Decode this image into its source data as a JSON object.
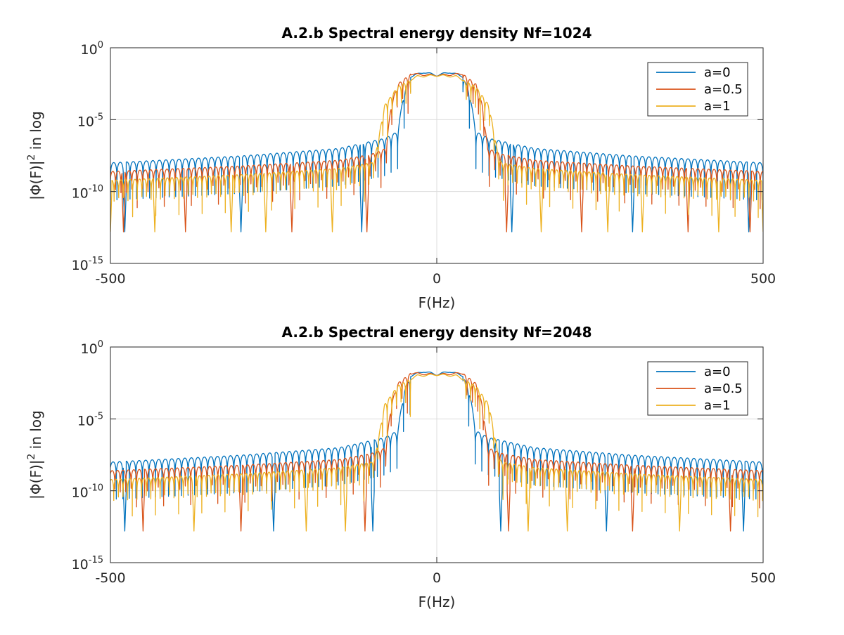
{
  "figure": {
    "background": "#ffffff",
    "axis_color": "#262626",
    "grid_color": "#dcdcdc"
  },
  "chart_data": [
    {
      "type": "line",
      "title": "A.2.b Spectral energy density Nf=1024",
      "xlabel": "F(Hz)",
      "ylabel": "|Φ(F)|² in log",
      "ylabel_parts": {
        "lead": "|Φ(F)|",
        "sup": "2",
        "tail": " in log"
      },
      "xlim": [
        -500,
        500
      ],
      "ylim": [
        1e-15,
        1
      ],
      "yscale": "log",
      "grid": true,
      "legend_location": "top-right",
      "x_ticks": [
        -500,
        0,
        500
      ],
      "x_tick_labels": [
        "-500",
        "0",
        "500"
      ],
      "y_ticks": [
        1e-15,
        1e-10,
        1e-05,
        1
      ],
      "y_tick_labels": [
        {
          "base": "10",
          "exp": "-15"
        },
        {
          "base": "10",
          "exp": "-10"
        },
        {
          "base": "10",
          "exp": "-5"
        },
        {
          "base": "10",
          "exp": "0"
        }
      ],
      "series": [
        {
          "name": "a=0",
          "color": "#0072bd",
          "x": [
            -500,
            -300,
            -150,
            -80,
            -60,
            -50,
            -40,
            -20,
            0,
            20,
            40,
            50,
            60,
            80,
            150,
            300,
            500
          ],
          "upper": [
            1e-08,
            3e-08,
            1e-07,
            5e-07,
            1.5e-06,
            0.001,
            0.01,
            0.02,
            0.012,
            0.02,
            0.01,
            0.001,
            1.5e-06,
            5e-07,
            1e-07,
            3e-08,
            1e-08
          ],
          "lobe_width": 10,
          "phase": 0,
          "deep_nulls": [
            -478,
            -300,
            -115,
            115,
            300,
            478
          ]
        },
        {
          "name": "a=0.5",
          "color": "#d95319",
          "x": [
            -500,
            -300,
            -150,
            -100,
            -78,
            -70,
            -60,
            -40,
            0,
            40,
            60,
            70,
            78,
            100,
            150,
            300,
            500
          ],
          "upper": [
            2.5e-09,
            6e-09,
            1.5e-08,
            4e-08,
            1e-07,
            0.0001,
            0.003,
            0.015,
            0.012,
            0.015,
            0.003,
            0.0001,
            1e-07,
            4e-08,
            1.5e-08,
            6e-09,
            2.5e-09
          ],
          "lobe_width": 8.3,
          "phase": 2.5,
          "deep_nulls": [
            -480,
            -385,
            -222,
            -107,
            107,
            222,
            385,
            480
          ]
        },
        {
          "name": "a=1",
          "color": "#edb120",
          "x": [
            -500,
            -300,
            -150,
            -100,
            -95,
            -80,
            -60,
            -30,
            0,
            30,
            60,
            80,
            95,
            100,
            150,
            300,
            500
          ],
          "upper": [
            6e-10,
            1.5e-09,
            4e-09,
            1e-08,
            2e-08,
            0.0001,
            0.002,
            0.01,
            0.012,
            0.01,
            0.002,
            0.0001,
            2e-08,
            1e-08,
            4e-09,
            1.5e-09,
            6e-10
          ],
          "lobe_width": 7.1,
          "phase": 4.5,
          "deep_nulls": [
            -500,
            -432,
            -315,
            -262,
            -160,
            160,
            262,
            315,
            432,
            500
          ]
        }
      ]
    },
    {
      "type": "line",
      "title": "A.2.b Spectral energy density Nf=2048",
      "xlabel": "F(Hz)",
      "ylabel": "|Φ(F)|² in log",
      "ylabel_parts": {
        "lead": "|Φ(F)|",
        "sup": "2",
        "tail": " in log"
      },
      "xlim": [
        -500,
        500
      ],
      "ylim": [
        1e-15,
        1
      ],
      "yscale": "log",
      "grid": true,
      "legend_location": "top-right",
      "x_ticks": [
        -500,
        0,
        500
      ],
      "x_tick_labels": [
        "-500",
        "0",
        "500"
      ],
      "y_ticks": [
        1e-15,
        1e-10,
        1e-05,
        1
      ],
      "y_tick_labels": [
        {
          "base": "10",
          "exp": "-15"
        },
        {
          "base": "10",
          "exp": "-10"
        },
        {
          "base": "10",
          "exp": "-5"
        },
        {
          "base": "10",
          "exp": "0"
        }
      ],
      "series": [
        {
          "name": "a=0",
          "color": "#0072bd",
          "x": [
            -500,
            -300,
            -150,
            -80,
            -60,
            -50,
            -40,
            -20,
            0,
            20,
            40,
            50,
            60,
            80,
            150,
            300,
            500
          ],
          "upper": [
            1e-08,
            3e-08,
            1e-07,
            5e-07,
            1.5e-06,
            0.001,
            0.01,
            0.02,
            0.012,
            0.02,
            0.01,
            0.001,
            1.5e-06,
            5e-07,
            1e-07,
            3e-08,
            1e-08
          ],
          "lobe_width": 10,
          "phase": 1,
          "deep_nulls": [
            -478,
            -250,
            -98,
            98,
            260,
            470
          ]
        },
        {
          "name": "a=0.5",
          "color": "#d95319",
          "x": [
            -500,
            -300,
            -150,
            -100,
            -78,
            -70,
            -60,
            -40,
            0,
            40,
            60,
            70,
            78,
            100,
            150,
            300,
            500
          ],
          "upper": [
            2.5e-09,
            6e-09,
            1.5e-08,
            4e-08,
            1e-07,
            0.0001,
            0.003,
            0.015,
            0.012,
            0.015,
            0.003,
            0.0001,
            1e-07,
            4e-08,
            1.5e-08,
            6e-09,
            2.5e-09
          ],
          "lobe_width": 8.3,
          "phase": 3.5,
          "deep_nulls": [
            -450,
            -300,
            -110,
            110,
            300,
            450
          ]
        },
        {
          "name": "a=1",
          "color": "#edb120",
          "x": [
            -500,
            -300,
            -150,
            -100,
            -95,
            -80,
            -60,
            -30,
            0,
            30,
            60,
            80,
            95,
            100,
            150,
            300,
            500
          ],
          "upper": [
            6e-10,
            1.5e-09,
            4e-09,
            1e-08,
            2e-08,
            0.0001,
            0.002,
            0.01,
            0.012,
            0.01,
            0.002,
            0.0001,
            2e-08,
            1e-08,
            4e-09,
            1.5e-09,
            6e-10
          ],
          "lobe_width": 7.1,
          "phase": 5,
          "deep_nulls": [
            -372,
            -200,
            -140,
            140,
            200,
            372
          ]
        }
      ]
    }
  ]
}
